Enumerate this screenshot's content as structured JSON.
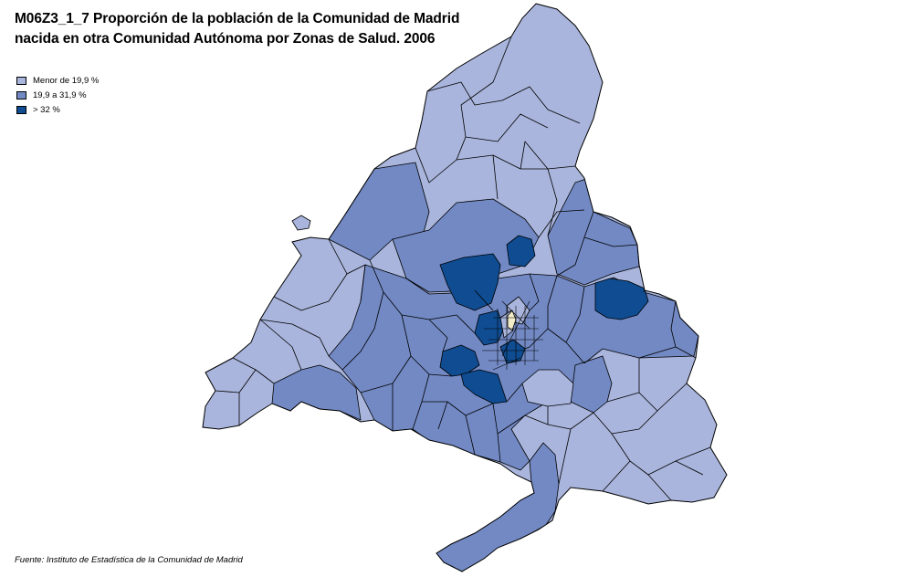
{
  "map": {
    "title_line1": "M06Z3_1_7 Proporción de la población de la  Comunidad de Madrid",
    "title_line2": "nacida en otra Comunidad Autónoma por Zonas de Salud.  2006",
    "source": "Fuente: Instituto de Estadística de la Comunidad de Madrid",
    "legend": [
      {
        "label": "Menor de 19,9  %",
        "color": "#a9b5dc"
      },
      {
        "label": "19,9 a 31,9 %",
        "color": "#7289c4"
      },
      {
        "label": "> 32 %",
        "color": "#0f4c91"
      }
    ],
    "colors": {
      "border": "#000000",
      "center_highlight": "#f2ecc8"
    }
  }
}
